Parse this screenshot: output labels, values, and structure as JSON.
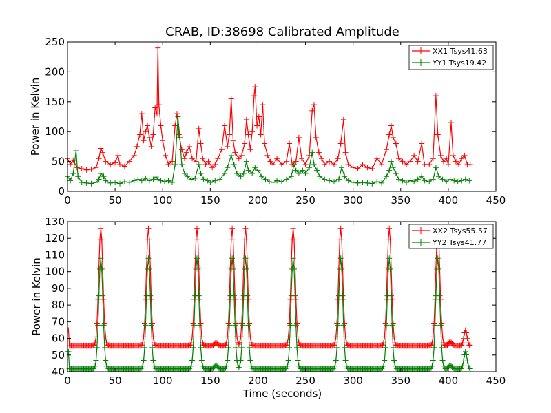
{
  "chart_data": [
    {
      "type": "line",
      "title": "CRAB, ID:38698 Calibrated Amplitude",
      "xlabel": "",
      "ylabel": "Power in Kelvin",
      "xlim": [
        0,
        450
      ],
      "ylim": [
        0,
        250
      ],
      "x_ticks": [
        0,
        50,
        100,
        150,
        200,
        250,
        300,
        350,
        400,
        450
      ],
      "y_ticks": [
        0,
        50,
        100,
        150,
        200,
        250
      ],
      "legend_position": "top-right",
      "grid": false,
      "series": [
        {
          "name": "XX1 Tsys41.63",
          "color": "#ff0000",
          "marker": "+",
          "points": [
            [
              0,
              55
            ],
            [
              3,
              45
            ],
            [
              6,
              52
            ],
            [
              10,
              40
            ],
            [
              15,
              38
            ],
            [
              20,
              36
            ],
            [
              25,
              37
            ],
            [
              30,
              40
            ],
            [
              33,
              55
            ],
            [
              35,
              72
            ],
            [
              37,
              65
            ],
            [
              40,
              50
            ],
            [
              45,
              45
            ],
            [
              50,
              48
            ],
            [
              53,
              60
            ],
            [
              55,
              45
            ],
            [
              60,
              42
            ],
            [
              65,
              50
            ],
            [
              70,
              60
            ],
            [
              73,
              75
            ],
            [
              76,
              95
            ],
            [
              78,
              130
            ],
            [
              80,
              85
            ],
            [
              82,
              100
            ],
            [
              84,
              110
            ],
            [
              86,
              90
            ],
            [
              88,
              75
            ],
            [
              90,
              95
            ],
            [
              92,
              140
            ],
            [
              94,
              130
            ],
            [
              95,
              240
            ],
            [
              96,
              145
            ],
            [
              98,
              110
            ],
            [
              100,
              85
            ],
            [
              103,
              60
            ],
            [
              106,
              45
            ],
            [
              110,
              50
            ],
            [
              113,
              110
            ],
            [
              115,
              130
            ],
            [
              117,
              95
            ],
            [
              120,
              70
            ],
            [
              123,
              55
            ],
            [
              125,
              65
            ],
            [
              128,
              75
            ],
            [
              131,
              55
            ],
            [
              135,
              50
            ],
            [
              138,
              105
            ],
            [
              140,
              80
            ],
            [
              142,
              55
            ],
            [
              145,
              45
            ],
            [
              148,
              50
            ],
            [
              152,
              40
            ],
            [
              155,
              45
            ],
            [
              158,
              55
            ],
            [
              162,
              70
            ],
            [
              165,
              110
            ],
            [
              168,
              75
            ],
            [
              170,
              95
            ],
            [
              172,
              155
            ],
            [
              174,
              85
            ],
            [
              176,
              65
            ],
            [
              180,
              55
            ],
            [
              183,
              60
            ],
            [
              186,
              80
            ],
            [
              188,
              120
            ],
            [
              190,
              95
            ],
            [
              192,
              70
            ],
            [
              194,
              100
            ],
            [
              196,
              160
            ],
            [
              197,
              175
            ],
            [
              199,
              110
            ],
            [
              201,
              125
            ],
            [
              203,
              95
            ],
            [
              205,
              145
            ],
            [
              207,
              80
            ],
            [
              210,
              60
            ],
            [
              213,
              50
            ],
            [
              216,
              45
            ],
            [
              220,
              55
            ],
            [
              225,
              45
            ],
            [
              230,
              50
            ],
            [
              233,
              80
            ],
            [
              236,
              45
            ],
            [
              240,
              50
            ],
            [
              243,
              90
            ],
            [
              246,
              55
            ],
            [
              250,
              45
            ],
            [
              254,
              60
            ],
            [
              257,
              135
            ],
            [
              259,
              145
            ],
            [
              261,
              90
            ],
            [
              264,
              65
            ],
            [
              267,
              55
            ],
            [
              270,
              45
            ],
            [
              275,
              50
            ],
            [
              280,
              45
            ],
            [
              284,
              55
            ],
            [
              287,
              80
            ],
            [
              290,
              120
            ],
            [
              292,
              65
            ],
            [
              295,
              45
            ],
            [
              300,
              40
            ],
            [
              305,
              38
            ],
            [
              310,
              45
            ],
            [
              315,
              40
            ],
            [
              320,
              38
            ],
            [
              325,
              55
            ],
            [
              330,
              45
            ],
            [
              335,
              70
            ],
            [
              338,
              95
            ],
            [
              340,
              110
            ],
            [
              342,
              90
            ],
            [
              345,
              80
            ],
            [
              348,
              55
            ],
            [
              352,
              50
            ],
            [
              356,
              45
            ],
            [
              360,
              50
            ],
            [
              364,
              60
            ],
            [
              368,
              50
            ],
            [
              372,
              80
            ],
            [
              375,
              45
            ],
            [
              380,
              45
            ],
            [
              384,
              55
            ],
            [
              387,
              160
            ],
            [
              389,
              95
            ],
            [
              392,
              60
            ],
            [
              395,
              50
            ],
            [
              398,
              55
            ],
            [
              400,
              45
            ],
            [
              403,
              115
            ],
            [
              405,
              60
            ],
            [
              408,
              50
            ],
            [
              411,
              45
            ],
            [
              414,
              55
            ],
            [
              417,
              60
            ],
            [
              420,
              45
            ],
            [
              423,
              45
            ]
          ]
        },
        {
          "name": "YY1 Tsys19.42",
          "color": "#008000",
          "marker": "+",
          "points": [
            [
              0,
              25
            ],
            [
              3,
              18
            ],
            [
              6,
              30
            ],
            [
              9,
              68
            ],
            [
              11,
              25
            ],
            [
              15,
              15
            ],
            [
              20,
              14
            ],
            [
              25,
              13
            ],
            [
              30,
              15
            ],
            [
              33,
              20
            ],
            [
              35,
              30
            ],
            [
              38,
              25
            ],
            [
              40,
              18
            ],
            [
              45,
              14
            ],
            [
              50,
              15
            ],
            [
              55,
              13
            ],
            [
              60,
              16
            ],
            [
              65,
              15
            ],
            [
              70,
              18
            ],
            [
              74,
              20
            ],
            [
              78,
              18
            ],
            [
              82,
              22
            ],
            [
              86,
              18
            ],
            [
              90,
              20
            ],
            [
              93,
              24
            ],
            [
              95,
              20
            ],
            [
              98,
              18
            ],
            [
              102,
              16
            ],
            [
              106,
              18
            ],
            [
              110,
              15
            ],
            [
              113,
              45
            ],
            [
              116,
              125
            ],
            [
              118,
              90
            ],
            [
              120,
              45
            ],
            [
              123,
              30
            ],
            [
              126,
              25
            ],
            [
              130,
              20
            ],
            [
              134,
              22
            ],
            [
              138,
              45
            ],
            [
              140,
              30
            ],
            [
              143,
              20
            ],
            [
              147,
              18
            ],
            [
              150,
              15
            ],
            [
              155,
              18
            ],
            [
              160,
              20
            ],
            [
              165,
              30
            ],
            [
              168,
              40
            ],
            [
              172,
              60
            ],
            [
              175,
              45
            ],
            [
              178,
              30
            ],
            [
              182,
              25
            ],
            [
              185,
              30
            ],
            [
              188,
              50
            ],
            [
              190,
              35
            ],
            [
              194,
              30
            ],
            [
              197,
              40
            ],
            [
              200,
              35
            ],
            [
              204,
              25
            ],
            [
              208,
              20
            ],
            [
              212,
              16
            ],
            [
              216,
              15
            ],
            [
              220,
              18
            ],
            [
              225,
              16
            ],
            [
              230,
              20
            ],
            [
              235,
              25
            ],
            [
              238,
              45
            ],
            [
              240,
              35
            ],
            [
              243,
              30
            ],
            [
              247,
              35
            ],
            [
              250,
              30
            ],
            [
              254,
              40
            ],
            [
              257,
              65
            ],
            [
              259,
              45
            ],
            [
              262,
              35
            ],
            [
              265,
              25
            ],
            [
              270,
              20
            ],
            [
              275,
              18
            ],
            [
              280,
              16
            ],
            [
              285,
              20
            ],
            [
              288,
              40
            ],
            [
              291,
              25
            ],
            [
              295,
              18
            ],
            [
              300,
              15
            ],
            [
              305,
              14
            ],
            [
              310,
              15
            ],
            [
              315,
              14
            ],
            [
              320,
              13
            ],
            [
              325,
              16
            ],
            [
              330,
              14
            ],
            [
              335,
              25
            ],
            [
              338,
              35
            ],
            [
              340,
              50
            ],
            [
              342,
              40
            ],
            [
              345,
              30
            ],
            [
              348,
              20
            ],
            [
              352,
              18
            ],
            [
              356,
              15
            ],
            [
              360,
              18
            ],
            [
              364,
              16
            ],
            [
              368,
              20
            ],
            [
              372,
              25
            ],
            [
              375,
              18
            ],
            [
              380,
              16
            ],
            [
              384,
              20
            ],
            [
              387,
              40
            ],
            [
              390,
              25
            ],
            [
              394,
              20
            ],
            [
              398,
              16
            ],
            [
              402,
              20
            ],
            [
              406,
              18
            ],
            [
              410,
              16
            ],
            [
              414,
              18
            ],
            [
              418,
              20
            ],
            [
              422,
              18
            ]
          ]
        }
      ]
    },
    {
      "type": "line",
      "title": "",
      "xlabel": "Time (seconds)",
      "ylabel": "Power in Kelvin",
      "xlim": [
        0,
        450
      ],
      "ylim": [
        40,
        130
      ],
      "x_ticks": [
        0,
        50,
        100,
        150,
        200,
        250,
        300,
        350,
        400,
        450
      ],
      "y_ticks": [
        40,
        50,
        60,
        70,
        80,
        90,
        100,
        110,
        120,
        130
      ],
      "legend_position": "top-right",
      "grid": false,
      "peak_centers": [
        35,
        85,
        136,
        173,
        187,
        237,
        287,
        338,
        389
      ],
      "series": [
        {
          "name": "XX2 Tsys55.57",
          "color": "#ff0000",
          "marker": "+",
          "baseline": 55.6,
          "peak_top": 126,
          "start_value": 65,
          "extra_bumps": [
            [
              156,
              57.5
            ],
            [
              402,
              58
            ],
            [
              418,
              65
            ]
          ]
        },
        {
          "name": "YY2 Tsys41.77",
          "color": "#008000",
          "marker": "+",
          "baseline": 41.8,
          "peak_top": 108,
          "start_value": 52,
          "extra_bumps": [
            [
              156,
              44
            ],
            [
              402,
              44
            ],
            [
              418,
              52
            ]
          ]
        }
      ]
    }
  ]
}
